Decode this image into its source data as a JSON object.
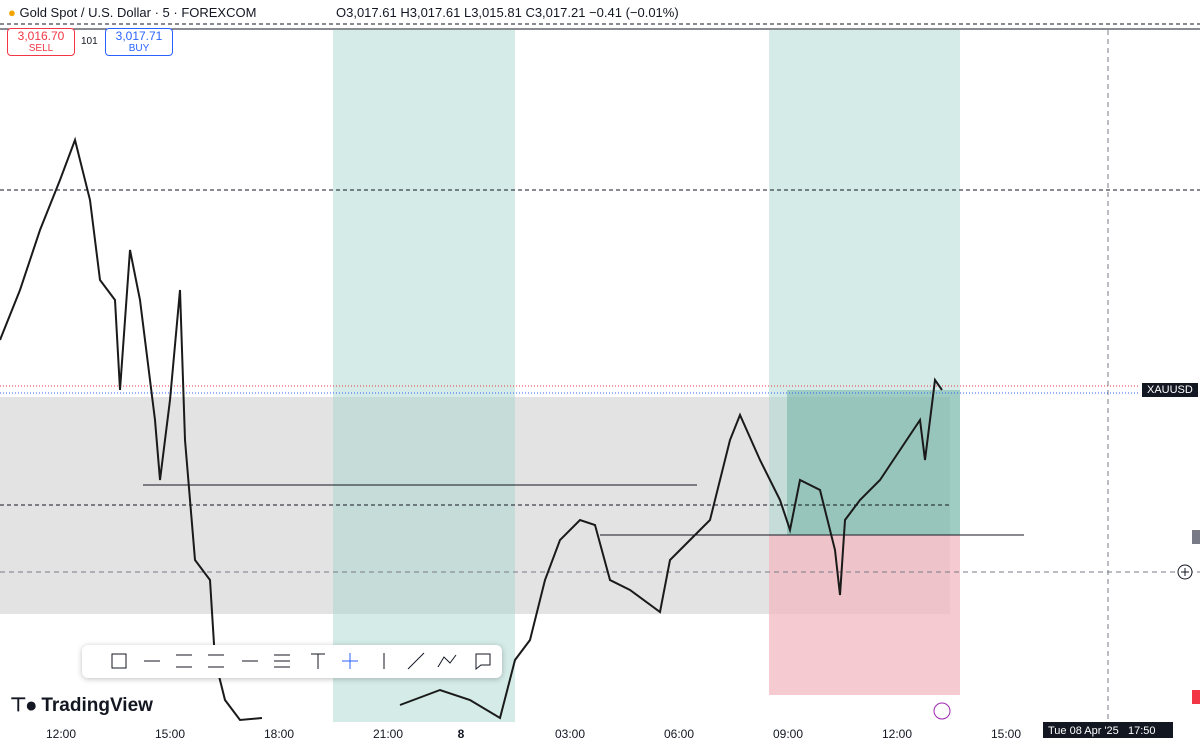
{
  "header": {
    "symbol": "Gold Spot / U.S. Dollar · 5 · FOREXCOM",
    "open": "O3,017.61",
    "high": "H3,017.61",
    "low": "L3,015.81",
    "close": "C3,017.21",
    "change": "−0.41 (−0.01%)"
  },
  "trade": {
    "sell_price": "3,016.70",
    "sell_label": "SELL",
    "spread": "101",
    "buy_price": "3,017.71",
    "buy_label": "BUY"
  },
  "price_label": "XAUUSD",
  "brand": "TradingView",
  "time_axis": {
    "labels": [
      "12:00",
      "15:00",
      "18:00",
      "21:00",
      "8",
      "03:00",
      "06:00",
      "09:00",
      "12:00",
      "15:00"
    ],
    "crosshair": "Tue 08 Apr '25   17:50"
  }
}
